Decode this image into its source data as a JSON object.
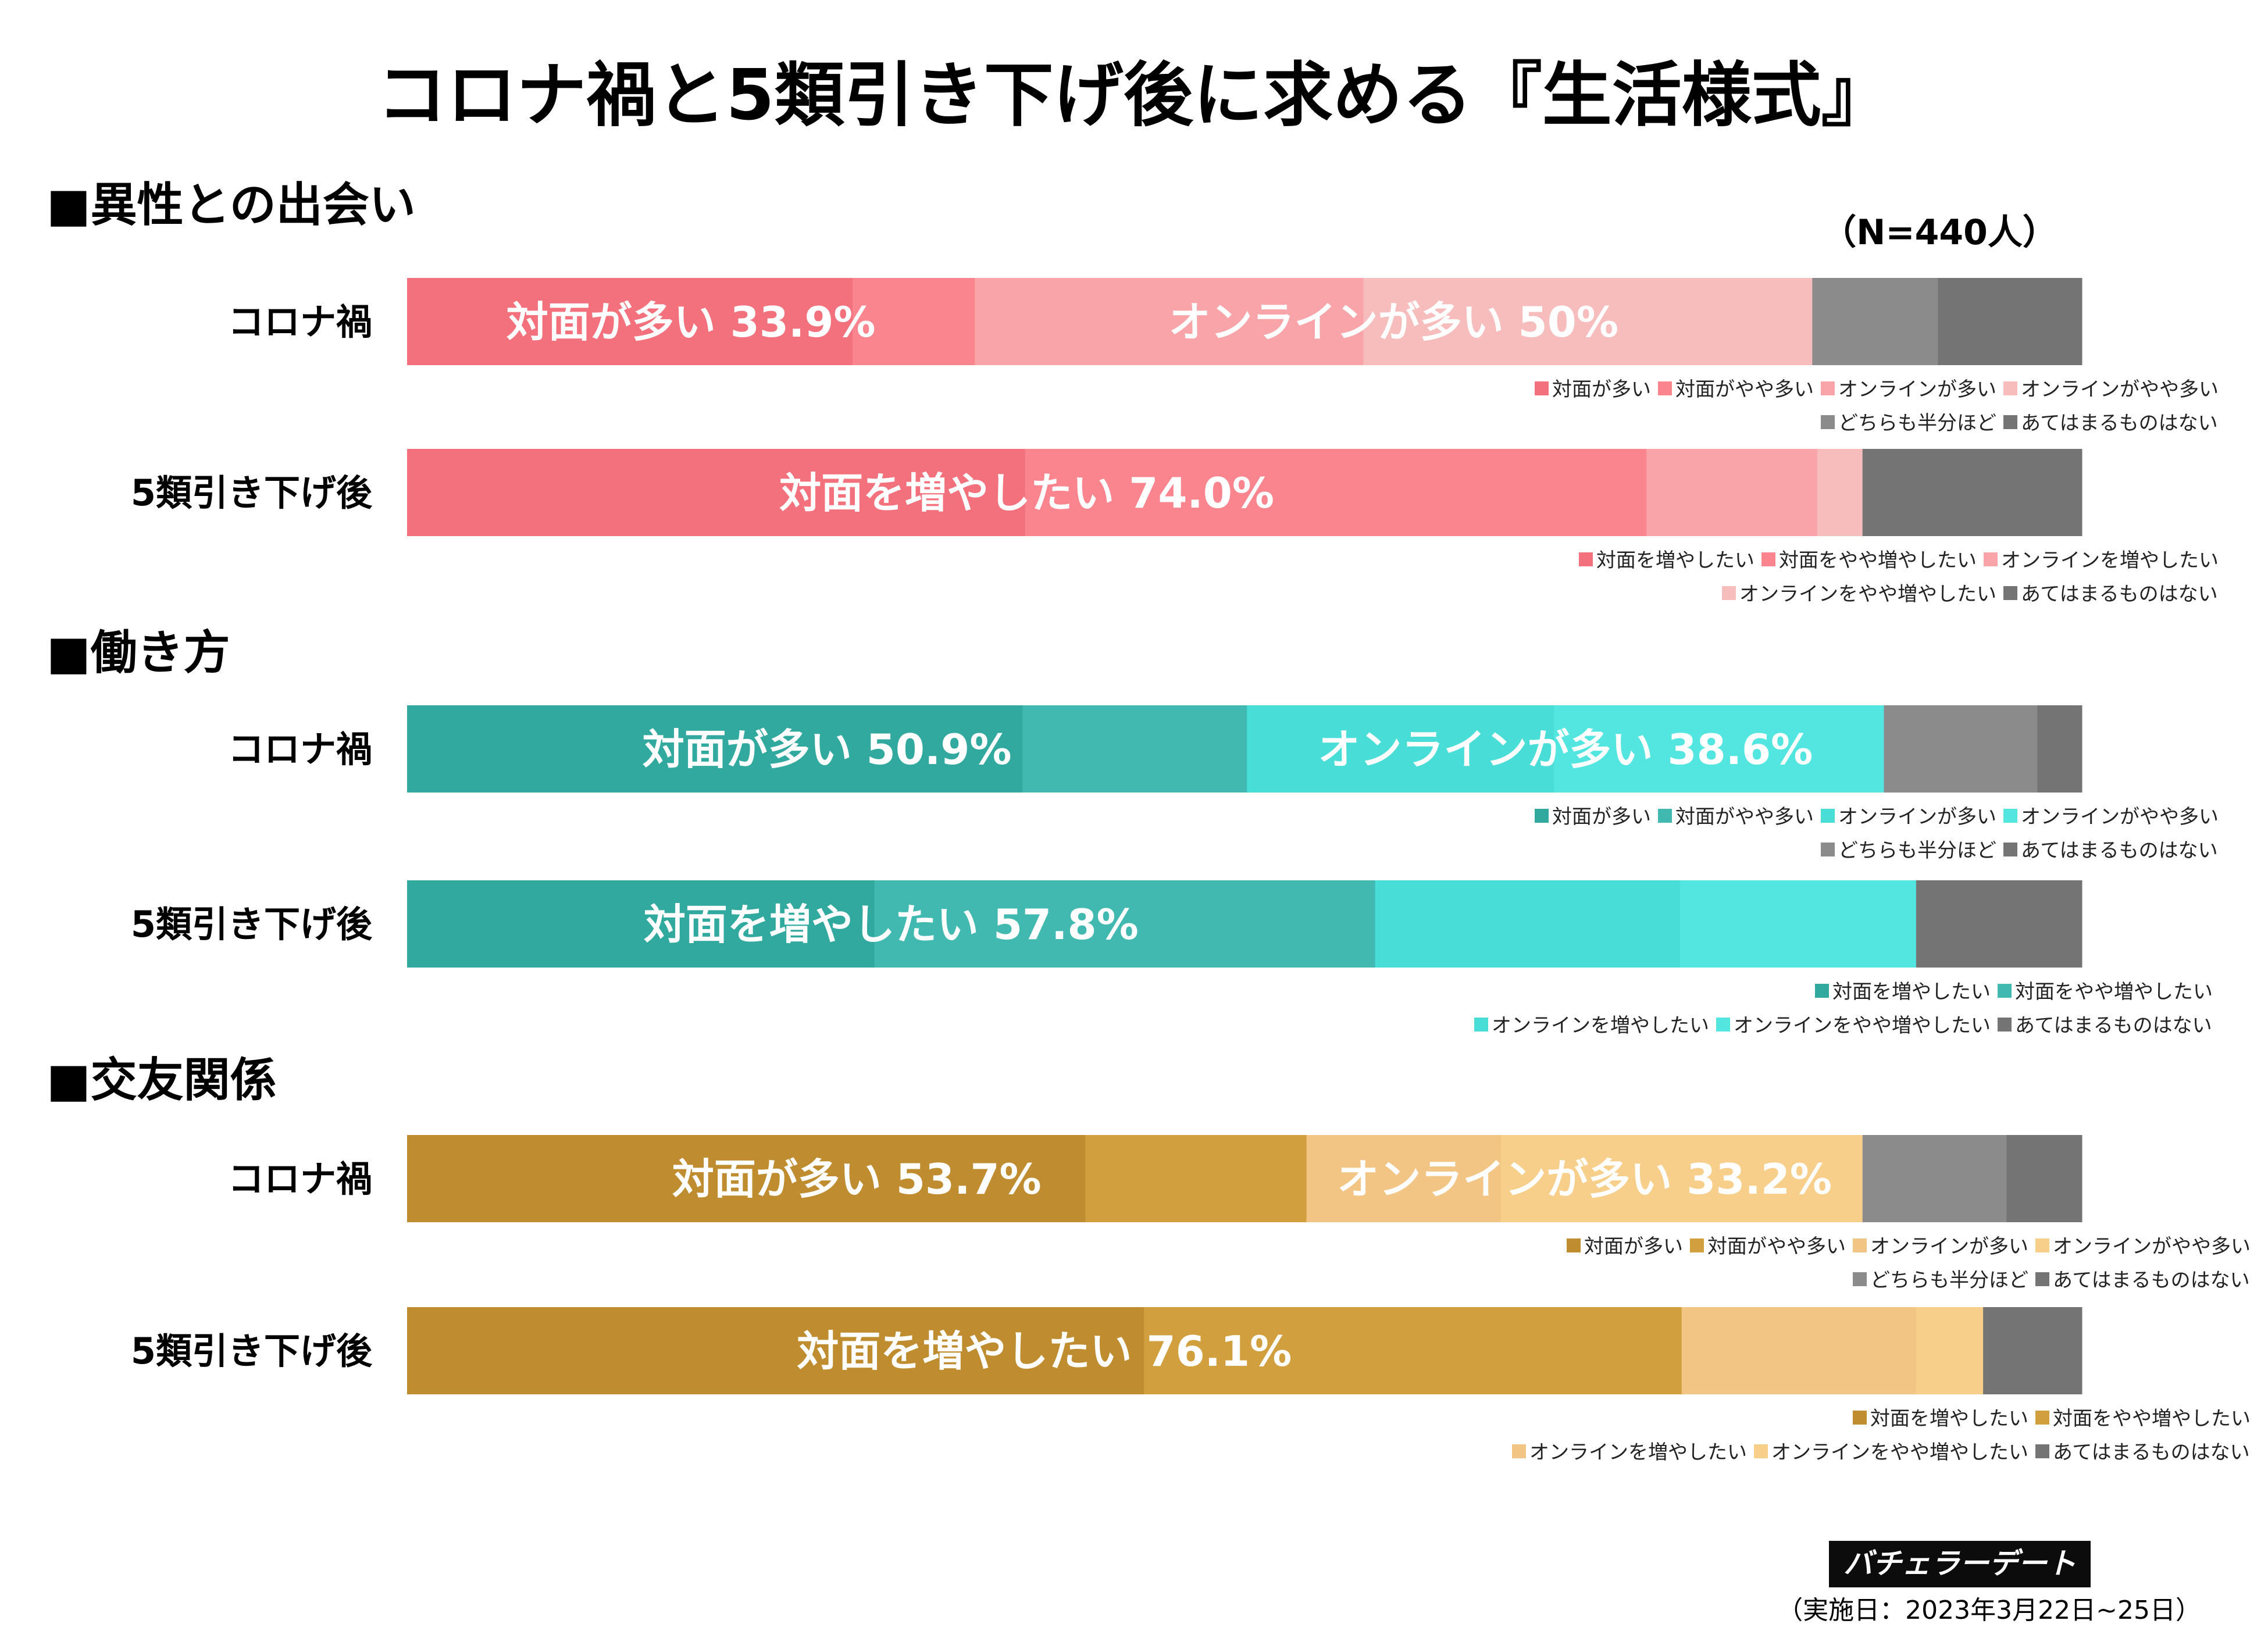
{
  "title": "コロナ禍と5類引き下げ後に求める『生活様式』",
  "sample_size": "（N=440人）",
  "logo_text": "バチェラーデート",
  "date_note": "（実施日：2023年3月22日~25日）",
  "colors": {
    "encounter": [
      "#f2717c",
      "#fb858f",
      "#f8a4a8",
      "#f7bcbc",
      "#8b8b8b",
      "#747474"
    ],
    "work": [
      "#31a99e",
      "#42b9b0",
      "#48ddd6",
      "#53e5df",
      "#8b8b8b",
      "#747474"
    ],
    "friends": [
      "#bf8d2f",
      "#d19f3e",
      "#f3c585",
      "#f8cf8a",
      "#8b8b8b",
      "#747474"
    ]
  },
  "chart_data": [
    {
      "type": "bar",
      "section": "■異性との出会い",
      "rows": [
        {
          "label": "コロナ禍",
          "categories": [
            "対面が多い",
            "対面がやや多い",
            "オンラインが多い",
            "オンラインがやや多い",
            "どちらも半分ほど",
            "あてはまるものはない"
          ],
          "values": [
            26.6,
            7.3,
            23.2,
            26.8,
            7.5,
            8.6
          ],
          "annotations": [
            {
              "text": "対面が多い 33.9%",
              "from": 0,
              "to": 2
            },
            {
              "text": "オンラインが多い 50%",
              "from": 2,
              "to": 4
            }
          ]
        },
        {
          "label": "5類引き下げ後",
          "categories": [
            "対面を増やしたい",
            "対面をやや増やしたい",
            "オンラインを増やしたい",
            "オンラインをやや増やしたい",
            "あてはまるものはない"
          ],
          "values": [
            36.9,
            37.1,
            10.2,
            2.7,
            13.1
          ],
          "annotations": [
            {
              "text": "対面を増やしたい 74.0%",
              "from": 0,
              "to": 2
            }
          ]
        }
      ]
    },
    {
      "type": "bar",
      "section": "■働き方",
      "rows": [
        {
          "label": "コロナ禍",
          "categories": [
            "対面が多い",
            "対面がやや多い",
            "オンラインが多い",
            "オンラインがやや多い",
            "どちらも半分ほど",
            "あてはまるものはない"
          ],
          "values": [
            37.3,
            13.6,
            18.6,
            20.0,
            9.3,
            2.7
          ],
          "annotations": [
            {
              "text": "対面が多い 50.9%",
              "from": 0,
              "to": 2
            },
            {
              "text": "オンラインが多い 38.6%",
              "from": 2,
              "to": 4
            }
          ]
        },
        {
          "label": "5類引き下げ後",
          "categories": [
            "対面を増やしたい",
            "対面をやや増やしたい",
            "オンラインを増やしたい",
            "オンラインをやや増やしたい",
            "あてはまるものはない"
          ],
          "values": [
            27.9,
            29.9,
            18.2,
            14.1,
            9.9
          ],
          "annotations": [
            {
              "text": "対面を増やしたい 57.8%",
              "from": 0,
              "to": 2
            }
          ]
        }
      ]
    },
    {
      "type": "bar",
      "section": "■交友関係",
      "rows": [
        {
          "label": "コロナ禍",
          "categories": [
            "対面が多い",
            "対面がやや多い",
            "オンラインが多い",
            "オンラインがやや多い",
            "どちらも半分ほど",
            "あてはまるものはない"
          ],
          "values": [
            40.5,
            13.2,
            11.6,
            21.6,
            8.6,
            4.5
          ],
          "annotations": [
            {
              "text": "対面が多い 53.7%",
              "from": 0,
              "to": 2
            },
            {
              "text": "オンラインが多い 33.2%",
              "from": 2,
              "to": 4
            }
          ]
        },
        {
          "label": "5類引き下げ後",
          "categories": [
            "対面を増やしたい",
            "対面をやや増やしたい",
            "オンラインを増やしたい",
            "オンラインをやや増やしたい",
            "あてはまるものはない"
          ],
          "values": [
            44.0,
            32.1,
            14.0,
            4.0,
            5.9
          ],
          "annotations": [
            {
              "text": "対面を増やしたい 76.1%",
              "from": 0,
              "to": 2
            }
          ]
        }
      ]
    }
  ]
}
